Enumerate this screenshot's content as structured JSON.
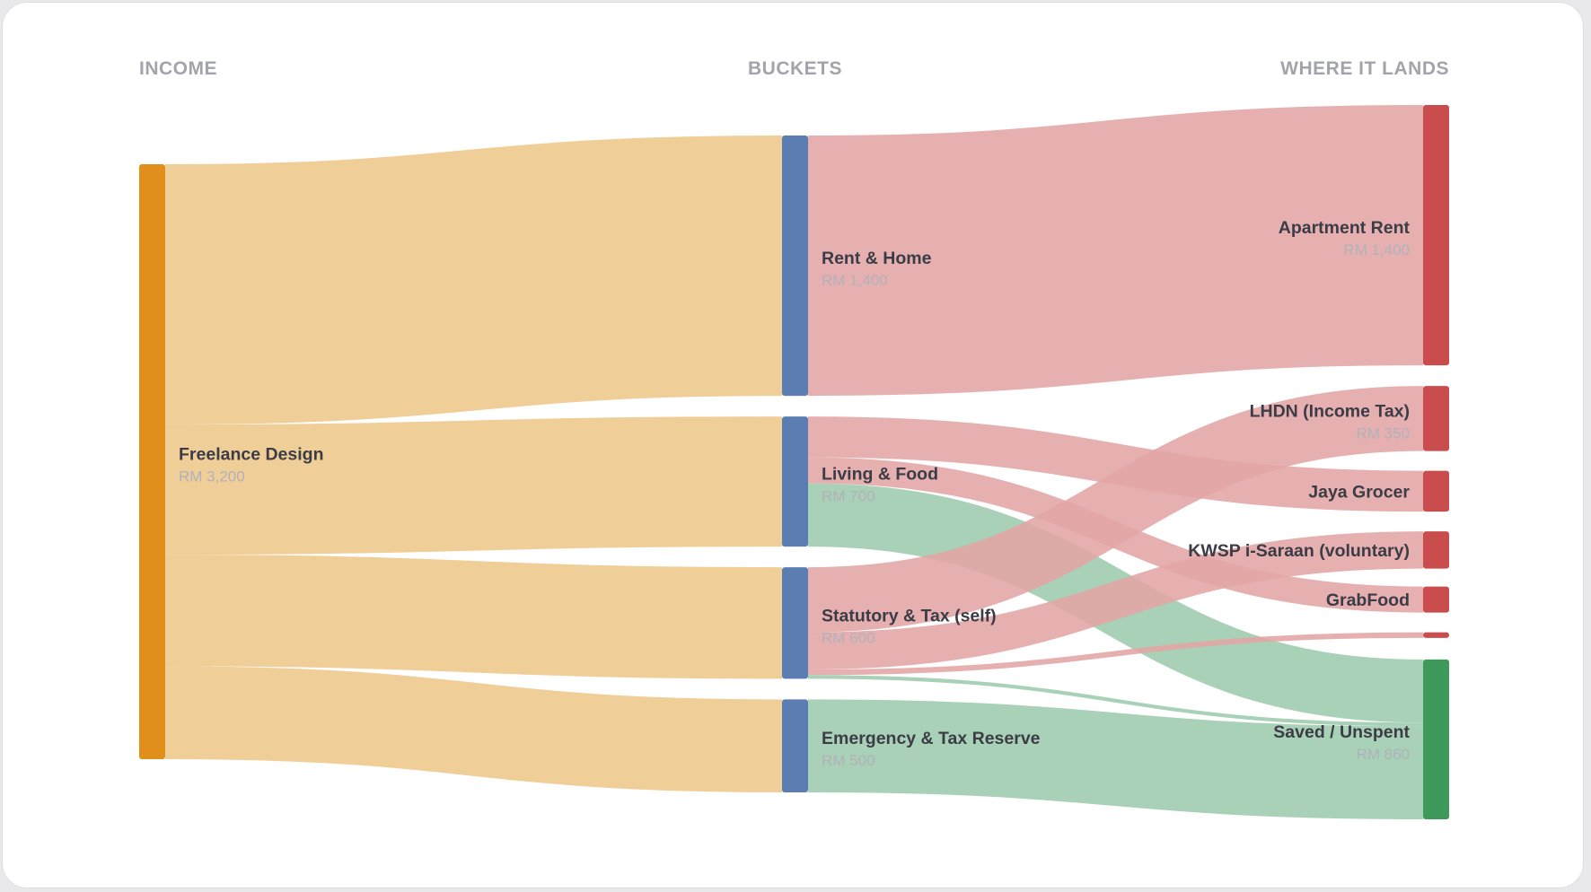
{
  "chart_data": {
    "type": "sankey",
    "columns": [
      "INCOME",
      "BUCKETS",
      "WHERE IT LANDS"
    ],
    "colors": {
      "income": "#e0901a",
      "income_link": "#eec78a",
      "bucket": "#5b7db1",
      "expense": "#c94d4d",
      "expense_link": "#e2a5a5",
      "saved": "#3e9a5a",
      "saved_link": "#9dcbad"
    },
    "nodes": [
      {
        "id": "freelance",
        "name": "Freelance Design",
        "value_label": "RM 3,200",
        "column": 0,
        "kind": "income"
      },
      {
        "id": "rent_home",
        "name": "Rent & Home",
        "value_label": "RM 1,400",
        "column": 1,
        "kind": "bucket"
      },
      {
        "id": "living_food",
        "name": "Living & Food",
        "value_label": "RM 700",
        "column": 1,
        "kind": "bucket"
      },
      {
        "id": "statutory",
        "name": "Statutory & Tax (self)",
        "value_label": "RM 600",
        "column": 1,
        "kind": "bucket"
      },
      {
        "id": "emergency",
        "name": "Emergency & Tax Reserve",
        "value_label": "RM 500",
        "column": 1,
        "kind": "bucket"
      },
      {
        "id": "apt_rent",
        "name": "Apartment Rent",
        "value_label": "RM 1,400",
        "column": 2,
        "kind": "expense"
      },
      {
        "id": "lhdn",
        "name": "LHDN (Income Tax)",
        "value_label": "RM 350",
        "column": 2,
        "kind": "expense"
      },
      {
        "id": "jaya",
        "name": "Jaya Grocer",
        "value_label": "",
        "column": 2,
        "kind": "expense"
      },
      {
        "id": "kwsp",
        "name": "KWSP i-Saraan (voluntary)",
        "value_label": "",
        "column": 2,
        "kind": "expense"
      },
      {
        "id": "grabfood",
        "name": "GrabFood",
        "value_label": "",
        "column": 2,
        "kind": "expense"
      },
      {
        "id": "small_exp",
        "name": "",
        "value_label": "",
        "column": 2,
        "kind": "expense"
      },
      {
        "id": "saved",
        "name": "Saved / Unspent",
        "value_label": "RM 860",
        "column": 2,
        "kind": "saved"
      }
    ],
    "links": [
      {
        "source": "freelance",
        "target": "rent_home",
        "value": 1400
      },
      {
        "source": "freelance",
        "target": "living_food",
        "value": 700
      },
      {
        "source": "freelance",
        "target": "statutory",
        "value": 600
      },
      {
        "source": "freelance",
        "target": "emergency",
        "value": 500
      },
      {
        "source": "rent_home",
        "target": "apt_rent",
        "value": 1400
      },
      {
        "source": "living_food",
        "target": "jaya",
        "value": 220
      },
      {
        "source": "living_food",
        "target": "grabfood",
        "value": 140
      },
      {
        "source": "living_food",
        "target": "saved",
        "value": 340
      },
      {
        "source": "statutory",
        "target": "lhdn",
        "value": 350
      },
      {
        "source": "statutory",
        "target": "kwsp",
        "value": 200
      },
      {
        "source": "statutory",
        "target": "small_exp",
        "value": 30
      },
      {
        "source": "statutory",
        "target": "saved",
        "value": 20
      },
      {
        "source": "emergency",
        "target": "saved",
        "value": 500
      }
    ]
  }
}
